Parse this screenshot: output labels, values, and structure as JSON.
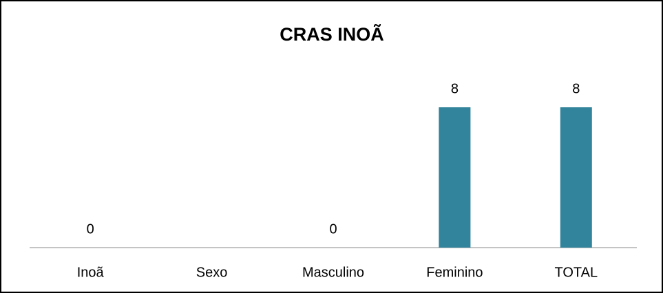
{
  "chart_data": {
    "type": "bar",
    "title": "CRAS INOÃ",
    "categories": [
      "Inoã",
      "Sexo",
      "Masculino",
      "Feminino",
      "TOTAL"
    ],
    "values": [
      0,
      null,
      0,
      8,
      8
    ],
    "color": "#31849b",
    "ylim": [
      0,
      10
    ]
  }
}
